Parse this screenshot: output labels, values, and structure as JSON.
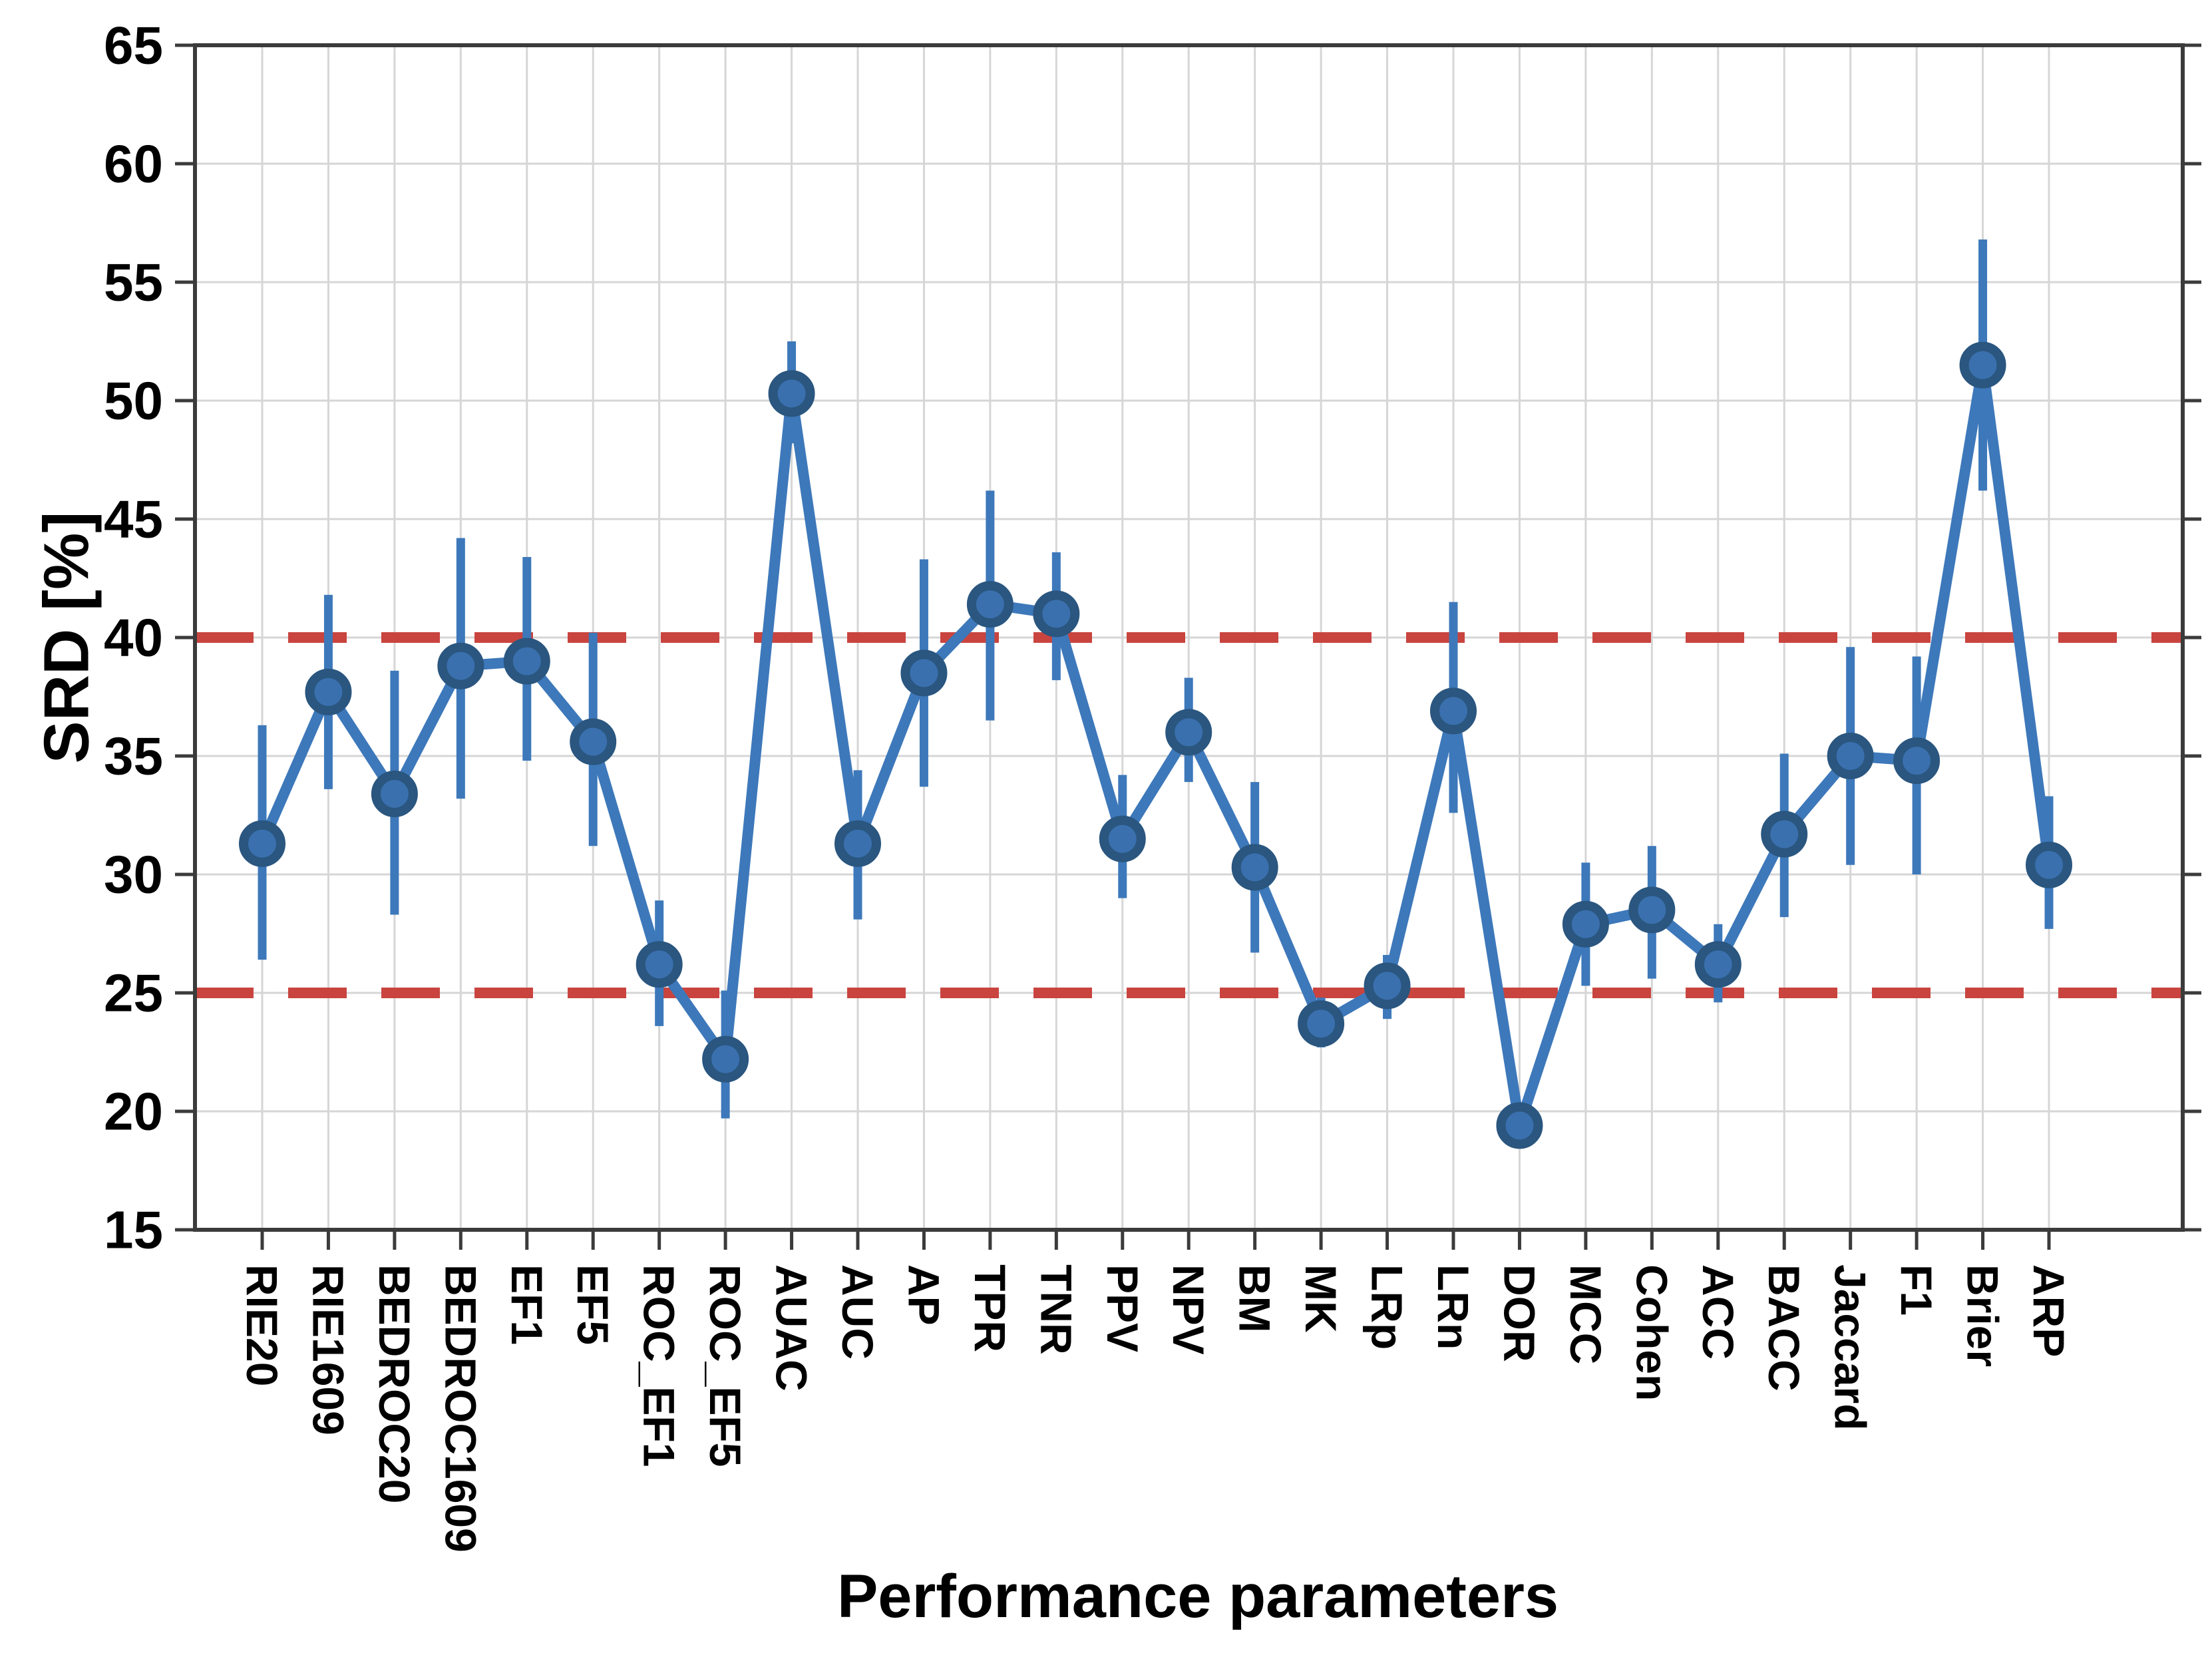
{
  "chart_data": {
    "type": "line",
    "title": "",
    "xlabel": "Performance parameters",
    "ylabel": "SRD [%]",
    "ylim": [
      15,
      65
    ],
    "yticks": [
      15,
      20,
      25,
      30,
      35,
      40,
      45,
      50,
      55,
      60,
      65
    ],
    "grid": true,
    "legend_position": "none",
    "categories": [
      "RIE20",
      "RIE1609",
      "BEDROC20",
      "BEDROC1609",
      "EF1",
      "EF5",
      "ROC_EF1",
      "ROC_EF5",
      "AUAC",
      "AUC",
      "AP",
      "TPR",
      "TNR",
      "PPV",
      "NPV",
      "BM",
      "MK",
      "LRp",
      "LRn",
      "DOR",
      "MCC",
      "Cohen",
      "ACC",
      "BACC",
      "Jaccard",
      "F1",
      "Brier",
      "ARP"
    ],
    "series": [
      {
        "name": "SRD",
        "values": [
          31.3,
          37.7,
          33.4,
          38.8,
          39.0,
          35.6,
          26.2,
          22.2,
          50.3,
          31.3,
          38.5,
          41.4,
          41.0,
          31.5,
          36.0,
          30.3,
          23.7,
          25.3,
          36.9,
          19.4,
          27.9,
          28.5,
          26.2,
          31.7,
          35.0,
          34.8,
          51.5,
          30.4
        ],
        "err_low": [
          26.4,
          33.6,
          28.3,
          33.2,
          34.8,
          31.2,
          23.6,
          19.7,
          48.2,
          28.1,
          33.7,
          36.5,
          38.2,
          29.0,
          33.9,
          26.7,
          22.7,
          23.9,
          32.6,
          19.0,
          25.3,
          25.6,
          24.6,
          28.2,
          30.4,
          30.0,
          46.2,
          27.7
        ],
        "err_high": [
          36.3,
          41.8,
          38.6,
          44.2,
          43.4,
          40.2,
          28.9,
          25.1,
          52.5,
          34.4,
          43.3,
          46.2,
          43.6,
          34.2,
          38.3,
          33.9,
          24.8,
          26.6,
          41.5,
          19.9,
          30.5,
          31.2,
          27.9,
          35.1,
          39.6,
          39.2,
          56.8,
          33.3
        ]
      }
    ],
    "reference_lines": [
      {
        "y": 25,
        "style": "dashed",
        "color": "#C9443F"
      },
      {
        "y": 40,
        "style": "dashed",
        "color": "#C9443F"
      }
    ],
    "colors": {
      "line": "#3D78BA",
      "error_bar": "#3D78BA",
      "marker_fill": "#3A70AE",
      "marker_edge": "#2A567F",
      "reference": "#C9443F",
      "gridline": "#D6D6D6",
      "axis_frame": "#3B3B3B",
      "tick_label": "#000000"
    }
  }
}
